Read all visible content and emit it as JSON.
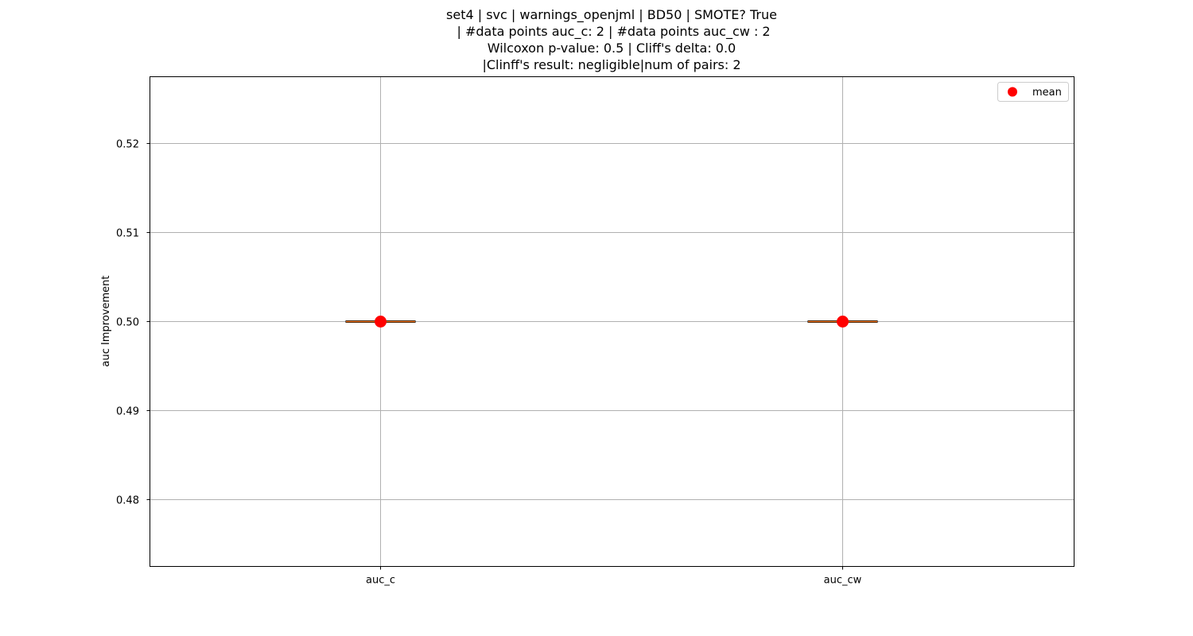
{
  "chart_data": {
    "type": "box",
    "title_lines": [
      "set4 | svc | warnings_openjml | BD50 | SMOTE? True",
      " | #data points auc_c: 2 | #data points auc_cw : 2",
      "Wilcoxon p-value: 0.5 | Cliff's delta: 0.0",
      "|Clinff's result: negligible|num of pairs: 2"
    ],
    "ylabel": "auc Improvement",
    "xlabel": "",
    "categories": [
      "auc_c",
      "auc_cw"
    ],
    "ylim": [
      0.4725,
      0.5275
    ],
    "yticks": [
      0.48,
      0.49,
      0.5,
      0.51,
      0.52
    ],
    "ytick_labels": [
      "0.48",
      "0.49",
      "0.50",
      "0.51",
      "0.52"
    ],
    "boxes": [
      {
        "category": "auc_c",
        "min": 0.5,
        "q1": 0.5,
        "median": 0.5,
        "q3": 0.5,
        "max": 0.5,
        "mean": 0.5
      },
      {
        "category": "auc_cw",
        "min": 0.5,
        "q1": 0.5,
        "median": 0.5,
        "q3": 0.5,
        "max": 0.5,
        "mean": 0.5
      }
    ],
    "legend": {
      "position": "top-right",
      "entries": [
        {
          "label": "mean",
          "marker": "circle",
          "color": "#ff0000"
        }
      ]
    },
    "grid": true,
    "colors": {
      "median": "#ff7f0e",
      "mean": "#ff0000",
      "grid": "#b0b0b0",
      "axis": "#000000"
    }
  }
}
